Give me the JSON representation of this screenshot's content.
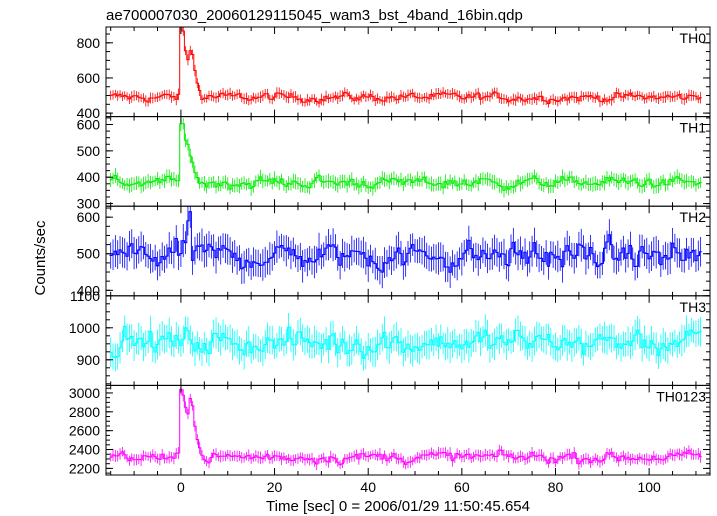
{
  "chart_data": {
    "type": "line",
    "title": "ae700007030_20060129115045_wam3_bst_4band_16bin.qdp",
    "xlabel": "Time [sec] 0 = 2006/01/29 11:50:45.654",
    "ylabel": "Counts/sec",
    "xlim": [
      -16,
      113
    ],
    "x_ticks": [
      0,
      20,
      40,
      60,
      80,
      100
    ],
    "x_tick_labels": [
      "0",
      "20",
      "40",
      "60",
      "80",
      "100"
    ],
    "grid": false,
    "panels": [
      {
        "name": "TH0",
        "color": "#ff0000",
        "ylim": [
          380,
          890
        ],
        "y_ticks": [
          400,
          600,
          800
        ],
        "y_tick_labels": [
          "400",
          "600",
          "800"
        ],
        "baseline": 490,
        "noise": 26,
        "error": 28,
        "peak": [
          {
            "x": 0.0,
            "value": 890
          },
          {
            "x": 0.5,
            "value": 870
          },
          {
            "x": 1.0,
            "value": 760
          },
          {
            "x": 1.5,
            "value": 700
          },
          {
            "x": 2.0,
            "value": 760
          },
          {
            "x": 2.5,
            "value": 730
          },
          {
            "x": 3.0,
            "value": 640
          },
          {
            "x": 3.5,
            "value": 570
          },
          {
            "x": 4.0,
            "value": 530
          }
        ]
      },
      {
        "name": "TH1",
        "color": "#00ee00",
        "ylim": [
          290,
          630
        ],
        "y_ticks": [
          300,
          400,
          500,
          600
        ],
        "y_tick_labels": [
          "300",
          "400",
          "500",
          "600"
        ],
        "baseline": 380,
        "noise": 22,
        "error": 24,
        "peak": [
          {
            "x": 0.0,
            "value": 610
          },
          {
            "x": 0.5,
            "value": 600
          },
          {
            "x": 1.0,
            "value": 540
          },
          {
            "x": 1.5,
            "value": 520
          },
          {
            "x": 2.0,
            "value": 480
          },
          {
            "x": 2.5,
            "value": 450
          },
          {
            "x": 3.0,
            "value": 420
          },
          {
            "x": 3.5,
            "value": 400
          }
        ]
      },
      {
        "name": "TH2",
        "color": "#0000ff",
        "ylim": [
          385,
          630
        ],
        "y_ticks": [
          400,
          500,
          600
        ],
        "y_tick_labels": [
          "400",
          "500",
          "600"
        ],
        "baseline": 495,
        "noise": 38,
        "error": 38,
        "peak": [
          {
            "x": 1.5,
            "value": 590
          },
          {
            "x": 2.0,
            "value": 610
          }
        ]
      },
      {
        "name": "TH3",
        "color": "#00ffff",
        "ylim": [
          820,
          1100
        ],
        "y_ticks": [
          900,
          1000,
          1100
        ],
        "y_tick_labels": [
          "900",
          "1000",
          "1100"
        ],
        "baseline": 955,
        "noise": 40,
        "error": 42,
        "peak": []
      },
      {
        "name": "TH0123",
        "color": "#ff00ff",
        "ylim": [
          2130,
          3080
        ],
        "y_ticks": [
          2200,
          2400,
          2600,
          2800,
          3000
        ],
        "y_tick_labels": [
          "2200",
          "2400",
          "2600",
          "2800",
          "3000"
        ],
        "baseline": 2320,
        "noise": 60,
        "error": 55,
        "peak": [
          {
            "x": 0.0,
            "value": 3030
          },
          {
            "x": 0.5,
            "value": 2980
          },
          {
            "x": 1.0,
            "value": 2850
          },
          {
            "x": 1.5,
            "value": 2780
          },
          {
            "x": 2.0,
            "value": 2950
          },
          {
            "x": 2.5,
            "value": 2880
          },
          {
            "x": 3.0,
            "value": 2650
          },
          {
            "x": 3.5,
            "value": 2500
          },
          {
            "x": 4.0,
            "value": 2420
          }
        ]
      }
    ]
  }
}
